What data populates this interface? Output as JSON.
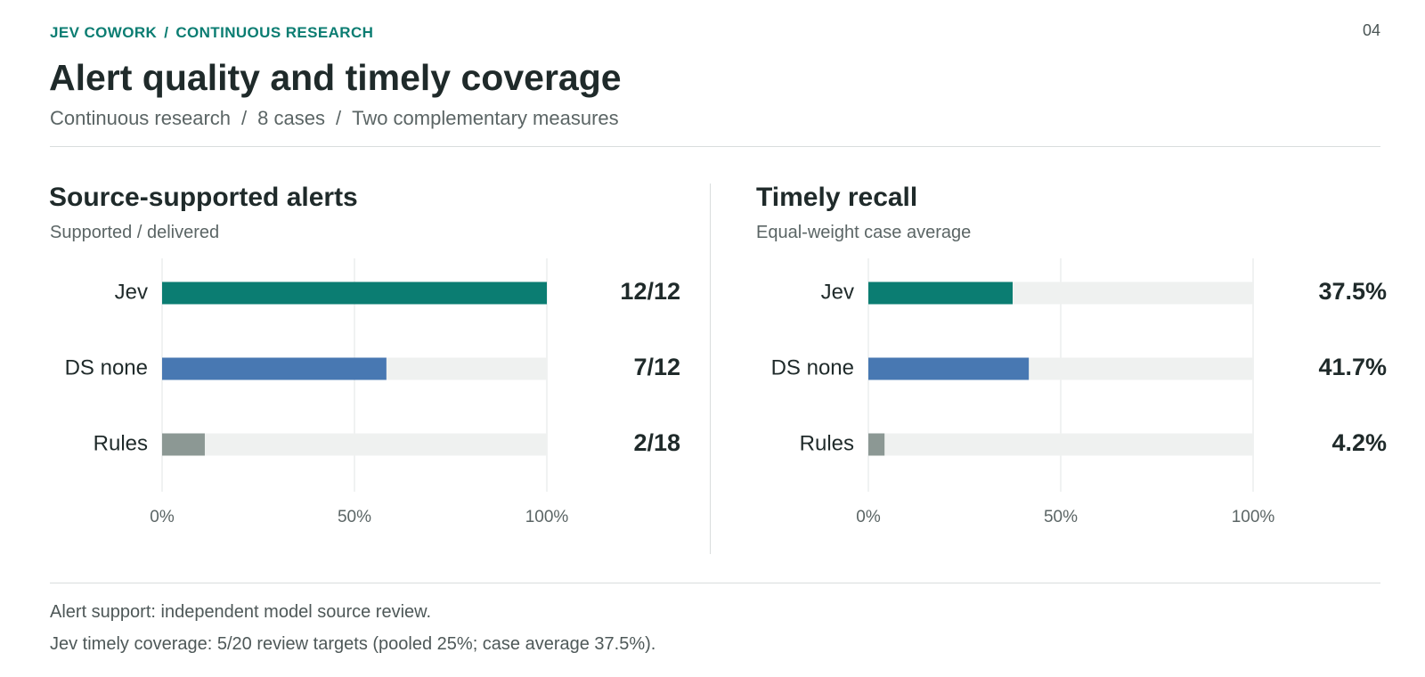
{
  "breadcrumb": {
    "org": "JEV COWORK",
    "separator": "/",
    "section": "CONTINUOUS RESEARCH"
  },
  "page_number": "04",
  "title": "Alert quality and timely coverage",
  "subtitle": {
    "part1": "Continuous research",
    "part2": "8 cases",
    "part3": "Two complementary measures",
    "separator": "/"
  },
  "colors": {
    "accent": "#0b7d72",
    "jev": "#0b7d72",
    "ds_none": "#4878b2",
    "rules": "#8c9894",
    "track": "#eff1f0",
    "grid": "#e2e5e5"
  },
  "chart_data": [
    {
      "type": "bar",
      "orientation": "horizontal",
      "title": "Source-supported alerts",
      "subtitle": "Supported / delivered",
      "categories": [
        "Jev",
        "DS none",
        "Rules"
      ],
      "values": [
        100,
        58.3,
        11.1
      ],
      "value_labels": [
        "12/12",
        "7/12",
        "2/18"
      ],
      "bar_colors": [
        "#0b7d72",
        "#4878b2",
        "#8c9894"
      ],
      "xlim": [
        0,
        100
      ],
      "x_ticks": [
        "0%",
        "50%",
        "100%"
      ],
      "grid": true
    },
    {
      "type": "bar",
      "orientation": "horizontal",
      "title": "Timely recall",
      "subtitle": "Equal-weight case average",
      "categories": [
        "Jev",
        "DS none",
        "Rules"
      ],
      "values": [
        37.5,
        41.7,
        4.2
      ],
      "value_labels": [
        "37.5%",
        "41.7%",
        "4.2%"
      ],
      "bar_colors": [
        "#0b7d72",
        "#4878b2",
        "#8c9894"
      ],
      "xlim": [
        0,
        100
      ],
      "x_ticks": [
        "0%",
        "50%",
        "100%"
      ],
      "grid": true
    }
  ],
  "footnotes": [
    "Alert support: independent model source review.",
    "Jev timely coverage: 5/20 review targets (pooled 25%; case average 37.5%)."
  ]
}
